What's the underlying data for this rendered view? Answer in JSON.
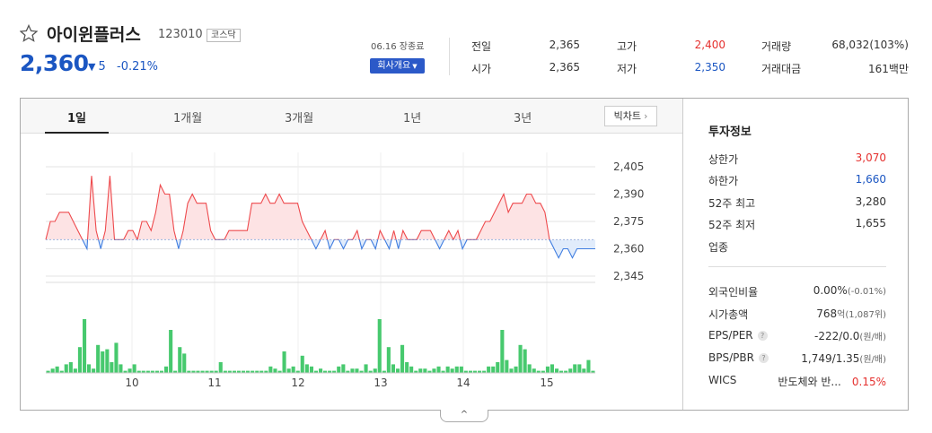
{
  "stock": {
    "name": "아이윈플러스",
    "code": "123010",
    "market": "코스닥",
    "price": "2,360",
    "change": "5",
    "change_pct": "-0.21%",
    "date": "06.16 장종료",
    "company_button": "회사개요"
  },
  "summary": [
    {
      "label": "전일",
      "value": "2,365",
      "color": "#333333"
    },
    {
      "label": "시가",
      "value": "2,365",
      "color": "#333333"
    },
    {
      "label": "고가",
      "value": "2,400",
      "color": "#e5302e"
    },
    {
      "label": "저가",
      "value": "2,350",
      "color": "#1b56c2"
    },
    {
      "label": "거래량",
      "value": "68,032(103%)"
    },
    {
      "label": "거래대금",
      "value": "161백만"
    }
  ],
  "tabs": [
    "1일",
    "1개월",
    "3개월",
    "1년",
    "3년"
  ],
  "active_tab": 0,
  "big_chart_button": "빅차트",
  "chart_data": {
    "type": "line",
    "base_price": 2365,
    "y_ticks": [
      "2,405",
      "2,390",
      "2,375",
      "2,360",
      "2,345"
    ],
    "ylim": [
      2345,
      2405
    ],
    "x_tick_labels": [
      "10",
      "11",
      "12",
      "13",
      "14",
      "15"
    ],
    "series": [
      {
        "values": [
          2365,
          2375,
          2375,
          2380,
          2380,
          2380,
          2375,
          2370,
          2365,
          2360,
          2400,
          2370,
          2360,
          2370,
          2400,
          2365,
          2365,
          2365,
          2370,
          2370,
          2365,
          2375,
          2375,
          2370,
          2380,
          2395,
          2390,
          2390,
          2370,
          2360,
          2370,
          2385,
          2390,
          2385,
          2385,
          2385,
          2370,
          2365,
          2365,
          2365,
          2370,
          2370,
          2370,
          2370,
          2370,
          2385,
          2385,
          2385,
          2390,
          2385,
          2385,
          2390,
          2385,
          2385,
          2385,
          2385,
          2375,
          2370,
          2365,
          2360,
          2365,
          2370,
          2360,
          2365,
          2365,
          2360,
          2365,
          2365,
          2370,
          2360,
          2365,
          2365,
          2360,
          2370,
          2365,
          2360,
          2370,
          2360,
          2370,
          2365,
          2365,
          2365,
          2370,
          2370,
          2370,
          2365,
          2360,
          2365,
          2370,
          2365,
          2370,
          2360,
          2365,
          2365,
          2365,
          2370,
          2375,
          2375,
          2380,
          2385,
          2390,
          2380,
          2385,
          2385,
          2385,
          2390,
          2390,
          2385,
          2385,
          2380,
          2365,
          2360,
          2355,
          2360,
          2360,
          2355,
          2360,
          2360,
          2360,
          2360,
          2360
        ]
      }
    ],
    "volume": [
      1,
      2,
      3,
      1,
      4,
      5,
      2,
      12,
      25,
      4,
      2,
      13,
      10,
      11,
      5,
      14,
      4,
      1,
      2,
      4,
      1,
      1,
      1,
      1,
      1,
      1,
      3,
      20,
      1,
      12,
      9,
      1,
      1,
      1,
      1,
      1,
      1,
      1,
      5,
      1,
      1,
      1,
      1,
      1,
      1,
      1,
      1,
      1,
      1,
      3,
      2,
      1,
      10,
      2,
      3,
      1,
      8,
      4,
      3,
      1,
      2,
      1,
      1,
      1,
      3,
      4,
      1,
      2,
      2,
      1,
      4,
      1,
      2,
      25,
      1,
      12,
      4,
      2,
      13,
      5,
      3,
      1,
      2,
      2,
      1,
      2,
      3,
      1,
      3,
      2,
      3,
      3,
      1,
      1,
      1,
      1,
      1,
      3,
      3,
      5,
      20,
      6,
      2,
      3,
      13,
      11,
      4,
      2,
      1,
      1,
      3,
      4,
      2,
      1,
      1,
      2,
      4,
      4,
      2,
      6,
      1
    ]
  },
  "investment": {
    "title": "투자정보",
    "rows1": [
      {
        "label": "상한가",
        "value": "3,070",
        "color": "#e5302e"
      },
      {
        "label": "하한가",
        "value": "1,660",
        "color": "#1b56c2"
      },
      {
        "label": "52주 최고",
        "value": "3,280",
        "color": "#333333"
      },
      {
        "label": "52주 최저",
        "value": "1,655",
        "color": "#333333"
      },
      {
        "label": "업종",
        "value": ""
      }
    ],
    "rows2": [
      {
        "label": "외국인비율",
        "value": "0.00%",
        "sub": "(-0.01%)"
      },
      {
        "label": "시가총액",
        "value": "768",
        "sub": "억(1,087위)"
      },
      {
        "label": "EPS/PER",
        "value": "-222/0.0",
        "sub": "(원/배)",
        "help": "?"
      },
      {
        "label": "BPS/PBR",
        "value": "1,749/1.35",
        "sub": "(원/배)",
        "help": "?"
      },
      {
        "label": "WICS",
        "value": "반도체와 반...",
        "sub": "0.15%"
      }
    ]
  },
  "collapse_icon": "^",
  "icons": {
    "favorite": "star-outline-icon",
    "down_arrow": "triangle-down-icon",
    "chevron": "chevron-right-icon"
  }
}
